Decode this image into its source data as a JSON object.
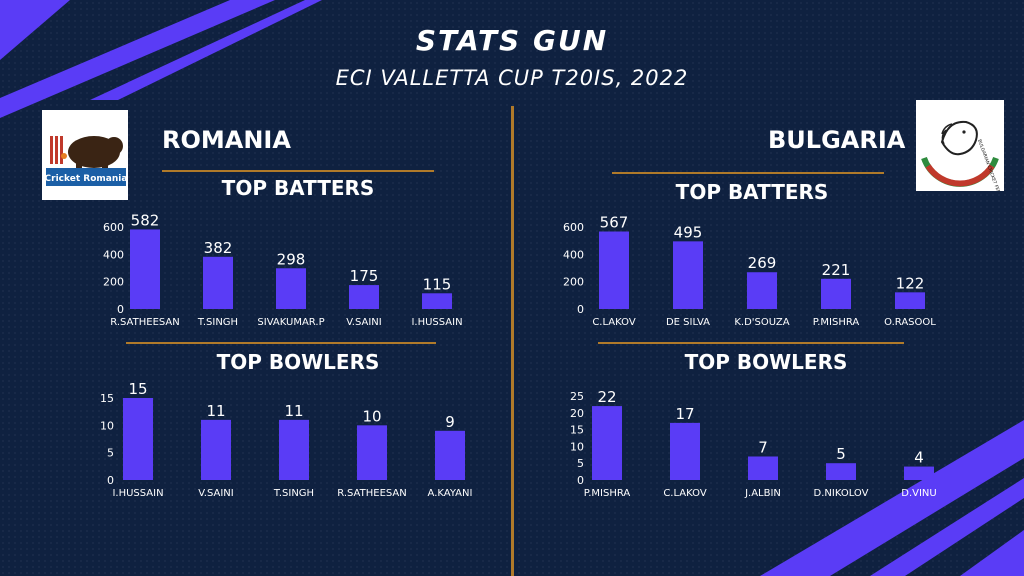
{
  "header": {
    "title": "STATS GUN",
    "subtitle": "ECI VALLETTA CUP T20IS, 2022"
  },
  "teams": {
    "left": {
      "name": "ROMANIA",
      "logo_text": "Cricket Romania"
    },
    "right": {
      "name": "BULGARIA",
      "logo_text": "BULGARIAN CRICKET FEDERATION"
    }
  },
  "sections": {
    "batters": "TOP BATTERS",
    "bowlers": "TOP BOWLERS"
  },
  "colors": {
    "bar": "#5a3cf6",
    "background": "#0f2140",
    "accent": "#b07a2a",
    "stripe": "#5a3cf6"
  },
  "chart_data": [
    {
      "id": "romania-batters",
      "type": "bar",
      "title": "TOP BATTERS",
      "categories": [
        "R.SATHEESAN",
        "T.SINGH",
        "SIVAKUMAR.P",
        "V.SAINI",
        "I.HUSSAIN"
      ],
      "values": [
        582,
        382,
        298,
        175,
        115
      ],
      "ylim": [
        0,
        600
      ],
      "yticks": [
        0,
        200,
        400,
        600
      ],
      "grid": false
    },
    {
      "id": "romania-bowlers",
      "type": "bar",
      "title": "TOP BOWLERS",
      "categories": [
        "I.HUSSAIN",
        "V.SAINI",
        "T.SINGH",
        "R.SATHEESAN",
        "A.KAYANI"
      ],
      "values": [
        15,
        11,
        11,
        10,
        9
      ],
      "ylim": [
        0,
        15
      ],
      "yticks": [
        0,
        5,
        10,
        15
      ],
      "grid": false
    },
    {
      "id": "bulgaria-batters",
      "type": "bar",
      "title": "TOP BATTERS",
      "categories": [
        "C.LAKOV",
        "DE SILVA",
        "K.D'SOUZA",
        "P.MISHRA",
        "O.RASOOL"
      ],
      "values": [
        567,
        495,
        269,
        221,
        122
      ],
      "ylim": [
        0,
        600
      ],
      "yticks": [
        0,
        200,
        400,
        600
      ],
      "grid": false
    },
    {
      "id": "bulgaria-bowlers",
      "type": "bar",
      "title": "TOP BOWLERS",
      "categories": [
        "P.MISHRA",
        "C.LAKOV",
        "J.ALBIN",
        "D.NIKOLOV",
        "D.VINU"
      ],
      "values": [
        22,
        17,
        7,
        5,
        4
      ],
      "ylim": [
        0,
        25
      ],
      "yticks": [
        0,
        5,
        10,
        15,
        20,
        25
      ],
      "grid": false
    }
  ]
}
